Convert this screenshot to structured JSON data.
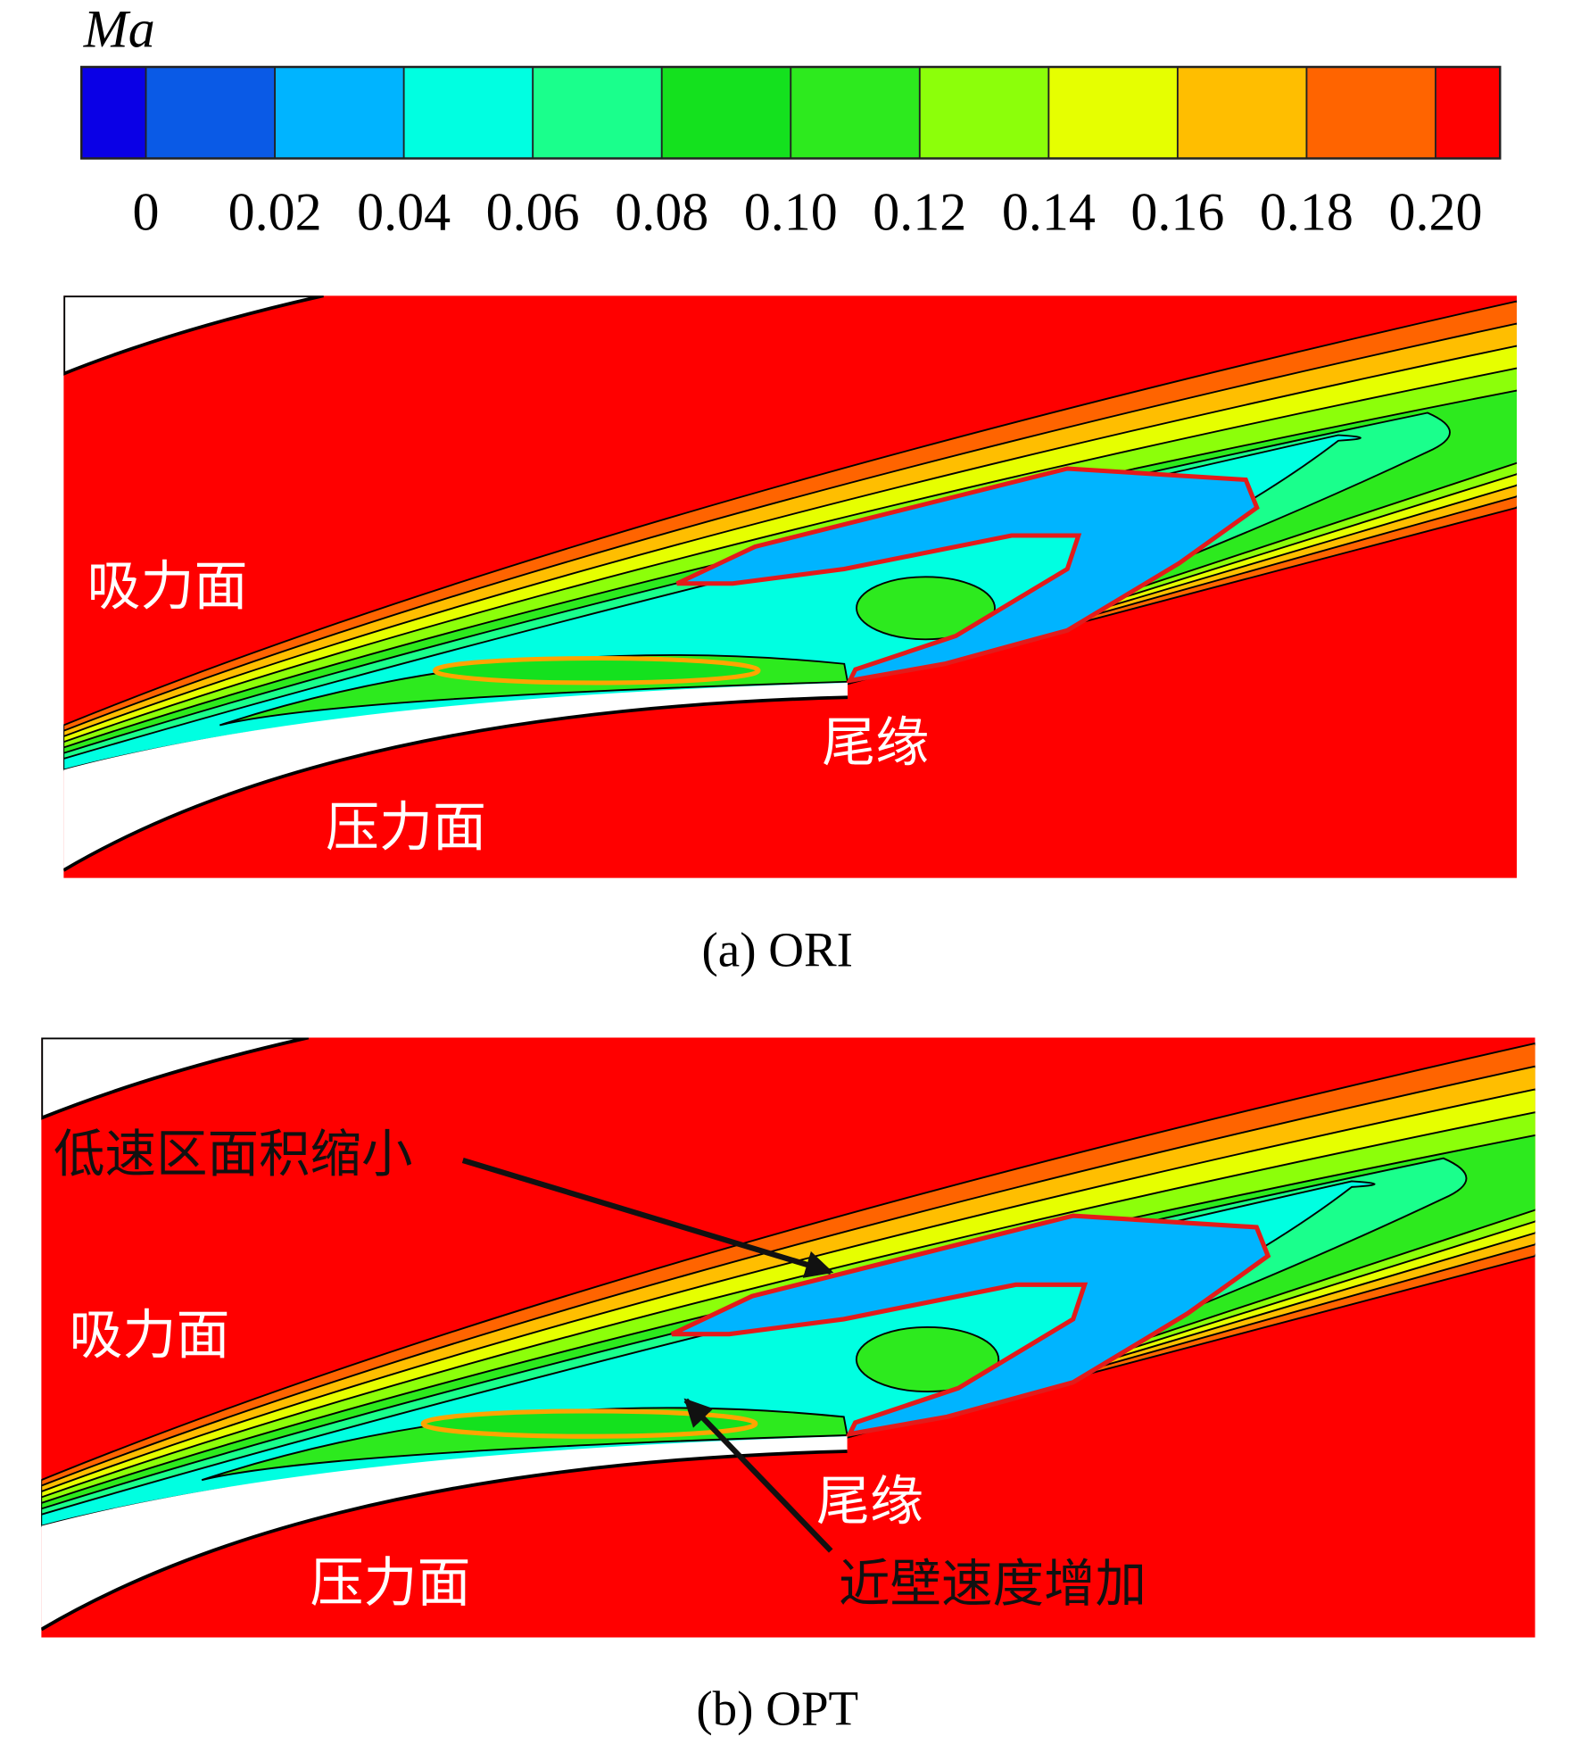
{
  "colorbar": {
    "title": "Ma",
    "lim": [
      -0.01,
      0.21
    ],
    "ticks": [
      0,
      0.02,
      0.04,
      0.06,
      0.08,
      {
        "value": 0.1,
        "label": "0.10"
      },
      0.12,
      0.14,
      0.16,
      0.18,
      {
        "value": 0.2,
        "label": "0.20"
      }
    ],
    "colors": [
      "#0a00e6",
      "#0a5ae6",
      "#00b4ff",
      "#00ffe1",
      "#1aff8c",
      "#14e11e",
      "#2dea1e",
      "#8cff0a",
      "#e6ff00",
      "#ffbe00",
      "#ff6400",
      "#ff0000"
    ]
  },
  "panels": [
    {
      "caption": "(a) ORI",
      "labels": {
        "suction": "吸力面",
        "pressure": "压力面",
        "trailing_edge": "尾缘"
      }
    },
    {
      "caption": "(b) OPT",
      "labels": {
        "suction": "吸力面",
        "pressure": "压力面",
        "trailing_edge": "尾缘"
      },
      "annotations": [
        "低速区面积缩小",
        "近壁速度增加"
      ]
    }
  ]
}
